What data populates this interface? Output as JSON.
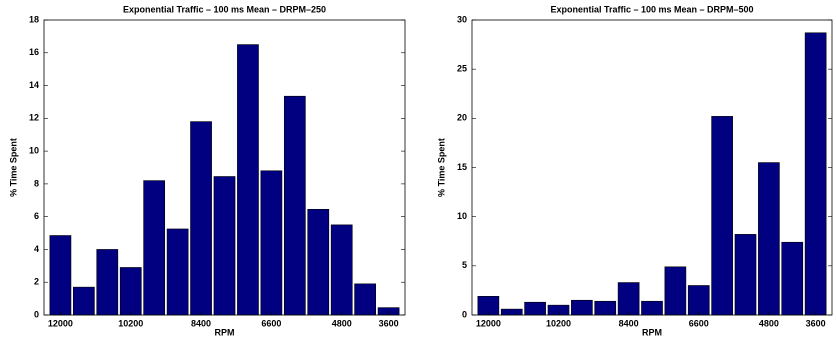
{
  "chart_data": [
    {
      "type": "bar",
      "title": "Exponential Traffic – 100 ms Mean – DRPM–250",
      "x_label": "RPM",
      "y_label": "% Time Spent",
      "categories": [
        "12000",
        null,
        null,
        "10200",
        null,
        null,
        "8400",
        null,
        null,
        "6600",
        null,
        null,
        "4800",
        null,
        "3600"
      ],
      "values": [
        4.85,
        1.7,
        4.0,
        2.9,
        8.2,
        5.25,
        11.8,
        8.45,
        16.5,
        8.8,
        13.35,
        6.45,
        5.5,
        1.9,
        0.45
      ],
      "color": "#000080",
      "ylim": [
        0,
        18
      ],
      "yticks": [
        0,
        2,
        4,
        6,
        8,
        10,
        12,
        14,
        16,
        18
      ]
    },
    {
      "type": "bar",
      "title": "Exponential Traffic – 100 ms Mean – DRPM–500",
      "x_label": "RPM",
      "y_label": "% Time Spent",
      "categories": [
        "12000",
        null,
        null,
        "10200",
        null,
        null,
        "8400",
        null,
        null,
        "6600",
        null,
        null,
        "4800",
        null,
        "3600"
      ],
      "values": [
        1.9,
        0.6,
        1.3,
        1.0,
        1.5,
        1.4,
        3.3,
        1.4,
        4.9,
        3.0,
        20.2,
        8.2,
        15.5,
        7.4,
        28.7
      ],
      "color": "#000080",
      "ylim": [
        0,
        30
      ],
      "yticks": [
        0,
        5,
        10,
        15,
        20,
        25,
        30
      ]
    }
  ]
}
